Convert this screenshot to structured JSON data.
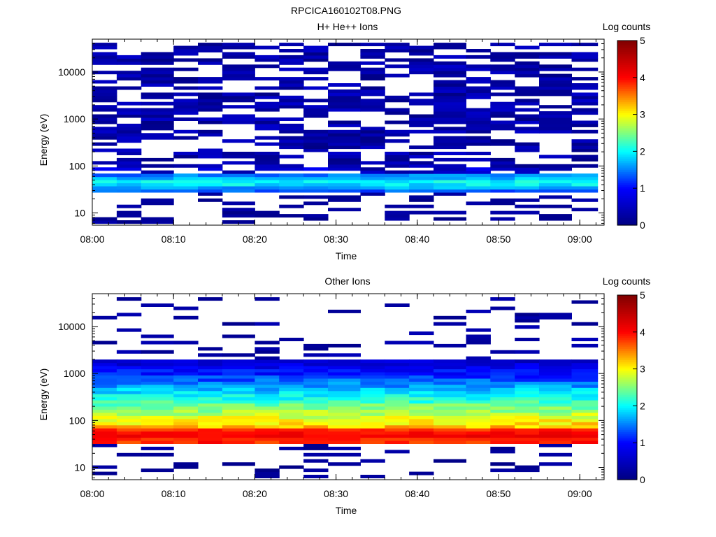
{
  "figure": {
    "title": "RPCICA160102T08.PNG"
  },
  "colormap": {
    "stops": [
      "#000080",
      "#0000ff",
      "#00ffff",
      "#ffff00",
      "#ff0000",
      "#800000"
    ]
  },
  "chart_data": [
    {
      "type": "heatmap",
      "title": "H+ He++ Ions",
      "xlabel": "Time",
      "ylabel": "Energy (eV)",
      "xticks": [
        "08:00",
        "08:10",
        "08:20",
        "08:30",
        "08:40",
        "08:50",
        "09:00"
      ],
      "xlim": [
        "08:00",
        "09:03"
      ],
      "yscale": "log",
      "ylim": [
        5.5,
        50000
      ],
      "yticks": [
        10,
        100,
        1000,
        10000
      ],
      "ytick_labels": [
        "10",
        "100",
        "1000",
        "10000"
      ],
      "colorbar": {
        "label": "Log counts",
        "range": [
          0,
          5
        ],
        "ticks": [
          "0",
          "1",
          "2",
          "3",
          "4",
          "5"
        ]
      },
      "time_bins": [
        "08:00",
        "08:03",
        "08:06",
        "08:10",
        "08:13",
        "08:16",
        "08:20",
        "08:23",
        "08:26",
        "08:29",
        "08:33",
        "08:36",
        "08:39",
        "08:42",
        "08:46",
        "08:49",
        "08:52",
        "08:55",
        "08:59"
      ],
      "energy_range_eV": [
        6,
        42000
      ],
      "profile": {
        "background_level": 0.2,
        "band_center_eV": 45,
        "band_peak_level": 1.9,
        "note": "sparse counts above 100 eV, enhanced band near 40-60 eV"
      }
    },
    {
      "type": "heatmap",
      "title": "Other Ions",
      "xlabel": "Time",
      "ylabel": "Energy (eV)",
      "xticks": [
        "08:00",
        "08:10",
        "08:20",
        "08:30",
        "08:40",
        "08:50",
        "09:00"
      ],
      "xlim": [
        "08:00",
        "09:03"
      ],
      "yscale": "log",
      "ylim": [
        5.5,
        50000
      ],
      "yticks": [
        10,
        100,
        1000,
        10000
      ],
      "ytick_labels": [
        "10",
        "100",
        "1000",
        "10000"
      ],
      "colorbar": {
        "label": "Log counts",
        "range": [
          0,
          5
        ],
        "ticks": [
          "0",
          "1",
          "2",
          "3",
          "4",
          "5"
        ]
      },
      "time_bins": [
        "08:00",
        "08:03",
        "08:06",
        "08:10",
        "08:13",
        "08:16",
        "08:20",
        "08:23",
        "08:26",
        "08:29",
        "08:33",
        "08:36",
        "08:39",
        "08:42",
        "08:46",
        "08:49",
        "08:52",
        "08:55",
        "08:59"
      ],
      "energy_range_eV": [
        6,
        42000
      ],
      "profile": {
        "band_center_eV": 50,
        "band_peak_level": 4.0,
        "level_at_100eV": 3.0,
        "level_at_1000eV": 1.0,
        "note": "intense band 40-60 eV, decreasing toward 1-2 keV, sparse above"
      }
    }
  ]
}
